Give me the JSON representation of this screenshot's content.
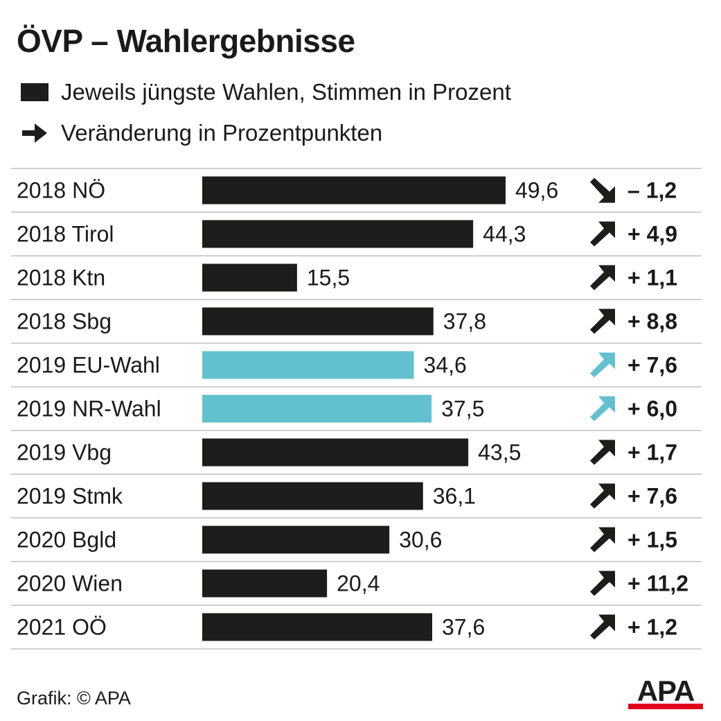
{
  "title": "ÖVP – Wahlergebnisse",
  "legend": {
    "bars": "Jeweils jüngste Wahlen, Stimmen in Prozent",
    "arrows": "Veränderung in Prozentpunkten"
  },
  "footer": {
    "credit": "Grafik: © APA",
    "logo_text": "APA"
  },
  "colors": {
    "bar_default": "#1d1d1b",
    "bar_highlight": "#63c1cf",
    "logo_red": "#e2001a"
  },
  "chart_data": {
    "type": "bar",
    "orientation": "horizontal",
    "title": "ÖVP – Wahlergebnisse",
    "categories": [
      "2018 NÖ",
      "2018 Tirol",
      "2018 Ktn",
      "2018 Sbg",
      "2019 EU-Wahl",
      "2019 NR-Wahl",
      "2019 Vbg",
      "2019 Stmk",
      "2020 Bgld",
      "2020 Wien",
      "2021 OÖ"
    ],
    "series": [
      {
        "name": "Jeweils jüngste Wahlen, Stimmen in Prozent",
        "values": [
          49.6,
          44.3,
          15.5,
          37.8,
          34.6,
          37.5,
          43.5,
          36.1,
          30.6,
          20.4,
          37.6
        ],
        "labels": [
          "49,6",
          "44,3",
          "15,5",
          "37,8",
          "34,6",
          "37,5",
          "43,5",
          "36,1",
          "30,6",
          "20,4",
          "37,6"
        ]
      },
      {
        "name": "Veränderung in Prozentpunkten",
        "values": [
          -1.2,
          4.9,
          1.1,
          8.8,
          7.6,
          6.0,
          1.7,
          7.6,
          1.5,
          11.2,
          1.2
        ],
        "labels": [
          "– 1,2",
          "+ 4,9",
          "+ 1,1",
          "+ 8,8",
          "+ 7,6",
          "+ 6,0",
          "+ 1,7",
          "+ 7,6",
          "+ 1,5",
          "+ 11,2",
          "+ 1,2"
        ]
      }
    ],
    "highlighted": [
      false,
      false,
      false,
      false,
      true,
      true,
      false,
      false,
      false,
      false,
      false
    ],
    "xlim": [
      0,
      100
    ],
    "grid": false,
    "legend_position": "top-left"
  }
}
